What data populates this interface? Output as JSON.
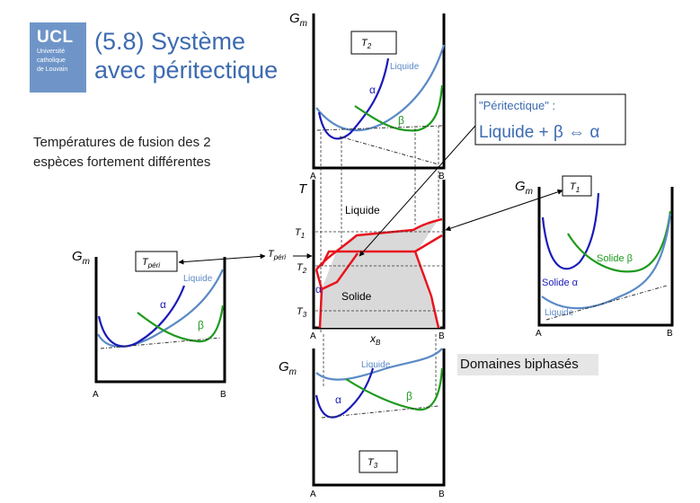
{
  "logo": {
    "text": "UCL",
    "sub1": "Université",
    "sub2": "catholique",
    "sub3": "de Louvain"
  },
  "title": {
    "line1": "(5.8) Système",
    "line2": "avec péritectique"
  },
  "subtitle": {
    "line1": "Températures de fusion des 2",
    "line2": "espèces fortement différentes"
  },
  "callout": {
    "line1": "\"Péritectique\" :",
    "line2": "Liquide + β ⇔ α"
  },
  "domains_label": "Domaines biphasés",
  "labels": {
    "gm": "G",
    "gm_sub": "m",
    "T": "T",
    "t_sub_2": "2",
    "t_sub_1": "1",
    "t_sub_3": "3",
    "t_sub_peri": "péri",
    "A": "A",
    "B": "B",
    "xB": "x",
    "xB_sub": "B",
    "liquide": "Liquide",
    "solide": "Solide",
    "alpha": "α",
    "beta": "β",
    "solide_beta": "Solide β",
    "solide_alpha": "Solide α"
  },
  "colors": {
    "blue_title": "#3d6bb0",
    "liquid": "#5b8ac6",
    "alpha": "#1a1ab8",
    "beta": "#1e9a1e",
    "phase_line": "#e8141e",
    "two_phase_fill": "#d9d9d9"
  }
}
